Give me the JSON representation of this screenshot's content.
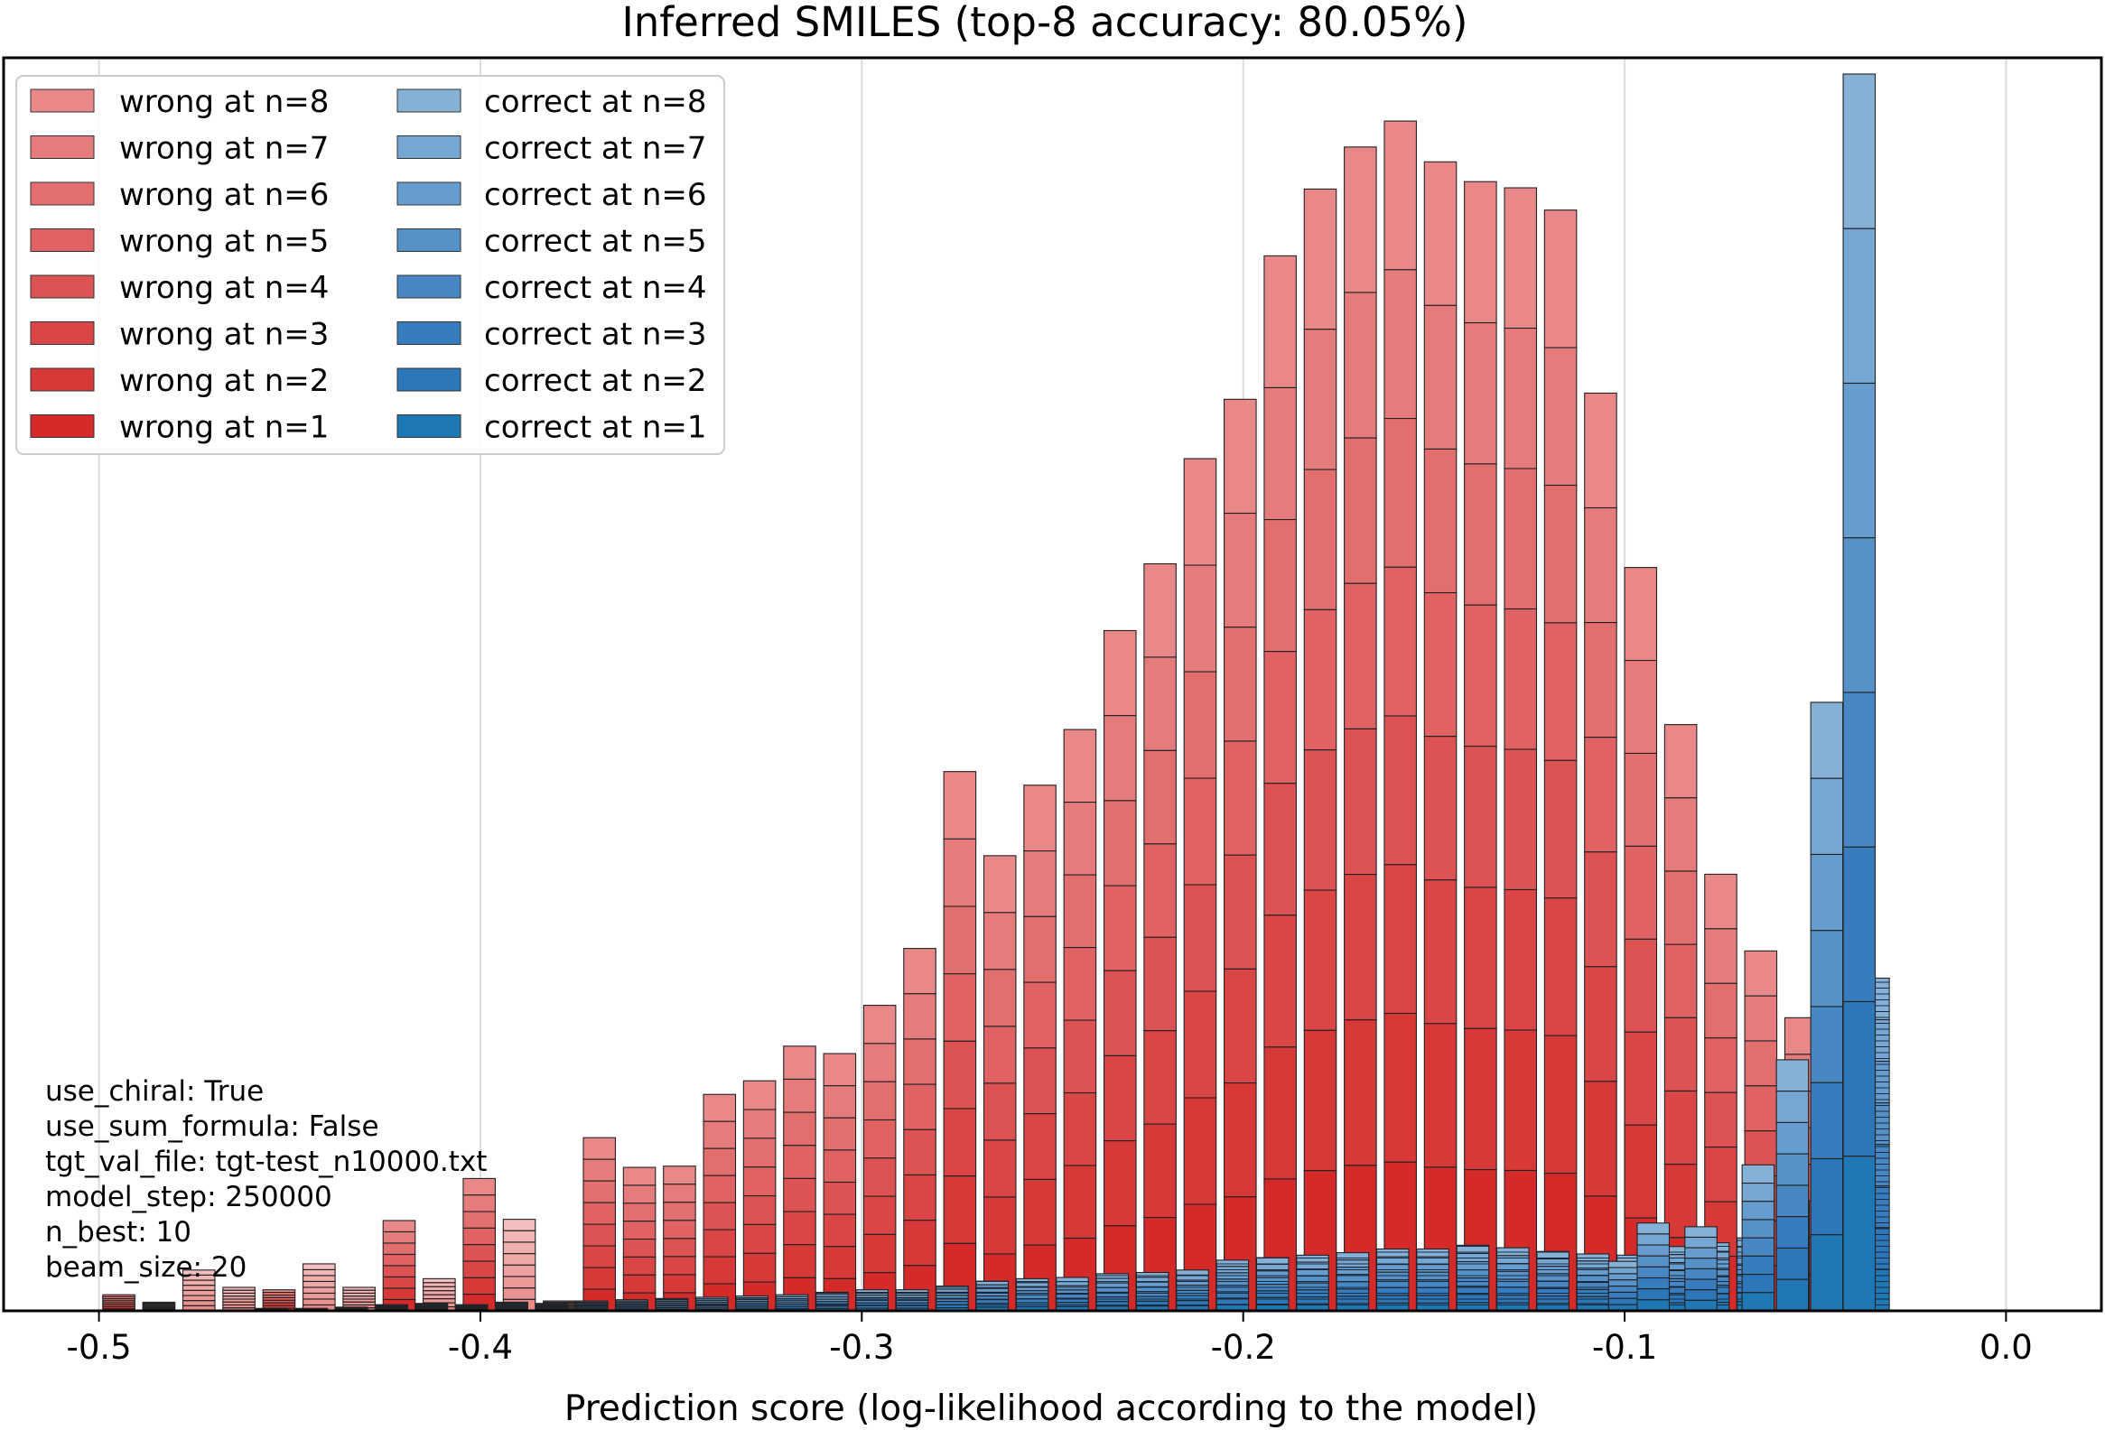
{
  "chart_data": {
    "type": "bar",
    "title": "Inferred SMILES (top-8 accuracy: 80.05%)",
    "xlabel": "Prediction score (log-likelihood according to the model)",
    "ylabel": "",
    "xlim": [
      -0.525,
      0.025
    ],
    "ylim": [
      0,
      1000
    ],
    "grid": "vertical",
    "legend_position": "top-left",
    "x_ticks": [
      -0.5,
      -0.4,
      -0.3,
      -0.2,
      -0.1,
      0.0
    ],
    "x_tick_labels": [
      "-0.5",
      "-0.4",
      "-0.3",
      "-0.2",
      "-0.1",
      "0.0"
    ],
    "bin_width": 0.0105,
    "wrong_series_names": [
      "wrong at n=8",
      "wrong at n=7",
      "wrong at n=6",
      "wrong at n=5",
      "wrong at n=4",
      "wrong at n=3",
      "wrong at n=2",
      "wrong at n=1"
    ],
    "correct_series_names": [
      "correct at n=8",
      "correct at n=7",
      "correct at n=6",
      "correct at n=5",
      "correct at n=4",
      "correct at n=3",
      "correct at n=2",
      "correct at n=1"
    ],
    "wrong_colors": [
      "#e98888",
      "#e67b7b",
      "#e36e6e",
      "#e06262",
      "#dd5252",
      "#da4545",
      "#d73838",
      "#d42a2a"
    ],
    "correct_colors": [
      "#86b1d7",
      "#76a7d3",
      "#669cce",
      "#5692c8",
      "#4787c3",
      "#377dbe",
      "#2b77b8",
      "#1f77b4"
    ],
    "wrong_centers": [
      -0.4948,
      -0.4843,
      -0.4738,
      -0.4633,
      -0.4528,
      -0.4423,
      -0.4318,
      -0.4213,
      -0.4108,
      -0.4003,
      -0.3898,
      -0.3793,
      -0.3688,
      -0.3583,
      -0.3478,
      -0.3373,
      -0.3268,
      -0.3163,
      -0.3058,
      -0.2953,
      -0.2848,
      -0.2743,
      -0.2638,
      -0.2533,
      -0.2428,
      -0.2323,
      -0.2218,
      -0.2113,
      -0.2008,
      -0.1903,
      -0.1798,
      -0.1693,
      -0.1588,
      -0.1483,
      -0.1378,
      -0.1273,
      -0.1168,
      -0.1063,
      -0.0958,
      -0.0853,
      -0.0748,
      -0.0643,
      -0.0538,
      -0.0433
    ],
    "wrong_totals": [
      13,
      7,
      33,
      19,
      17,
      38,
      19,
      73,
      26,
      107,
      74,
      8,
      140,
      116,
      117,
      175,
      186,
      214,
      208,
      247,
      293,
      436,
      368,
      425,
      470,
      550,
      604,
      689,
      737,
      853,
      907,
      941,
      962,
      929,
      913,
      908,
      890,
      742,
      601,
      474,
      353,
      291,
      237,
      140
    ],
    "correct_centers": [
      -0.4548,
      -0.4443,
      -0.4338,
      -0.4233,
      -0.4128,
      -0.4023,
      -0.3918,
      -0.3813,
      -0.3708,
      -0.3603,
      -0.3498,
      -0.3393,
      -0.3288,
      -0.3183,
      -0.3078,
      -0.2973,
      -0.2868,
      -0.2763,
      -0.2658,
      -0.2553,
      -0.2448,
      -0.2343,
      -0.2238,
      -0.2133,
      -0.2028,
      -0.1923,
      -0.1818,
      -0.1713,
      -0.1608,
      -0.1503,
      -0.1398,
      -0.1293,
      -0.1188,
      -0.1083,
      -0.0978,
      -0.0873,
      -0.0768,
      -0.0663,
      -0.0558,
      -0.0453,
      -0.0348
    ],
    "correct_totals": [
      2,
      2,
      3,
      5,
      6,
      5,
      7,
      6,
      8,
      9,
      10,
      11,
      12,
      13,
      15,
      17,
      17,
      20,
      24,
      26,
      27,
      30,
      31,
      33,
      41,
      43,
      45,
      47,
      50,
      50,
      53,
      51,
      48,
      46,
      45,
      52,
      55,
      59,
      88,
      120,
      269
    ],
    "correct_front_totals": [
      0,
      0,
      0,
      0,
      0,
      0,
      0,
      0,
      0,
      0,
      0,
      0,
      0,
      0,
      0,
      0,
      0,
      0,
      0,
      0,
      0,
      0,
      0,
      0,
      0,
      0,
      0,
      0,
      0,
      0,
      0,
      0,
      0,
      0,
      0,
      0,
      0,
      0,
      0,
      0,
      0,
      0,
      40,
      71,
      68,
      118,
      203,
      492,
      1000
    ],
    "correct_front_centers": [
      -0.5,
      -0.5,
      -0.5,
      -0.5,
      -0.5,
      -0.5,
      -0.5,
      -0.5,
      -0.5,
      -0.5,
      -0.5,
      -0.5,
      -0.5,
      -0.5,
      -0.5,
      -0.5,
      -0.5,
      -0.5,
      -0.5,
      -0.5,
      -0.5,
      -0.5,
      -0.5,
      -0.5,
      -0.5,
      -0.5,
      -0.5,
      -0.5,
      -0.5,
      -0.5,
      -0.5,
      -0.5,
      -0.5,
      -0.5,
      -0.5,
      -0.5,
      -0.5,
      -0.5,
      -0.5,
      -0.5,
      -0.5,
      -0.5,
      -0.1,
      -0.0925,
      -0.08,
      -0.065,
      -0.056,
      -0.047,
      -0.0385
    ],
    "faded_wrong_indices": [
      1,
      2,
      3,
      5,
      6,
      8,
      10,
      11
    ]
  },
  "info_box": {
    "lines": [
      "use_chiral: True",
      "use_sum_formula: False",
      "tgt_val_file: tgt-test_n10000.txt",
      "model_step: 250000",
      "n_best: 10",
      "beam_size: 20"
    ]
  }
}
